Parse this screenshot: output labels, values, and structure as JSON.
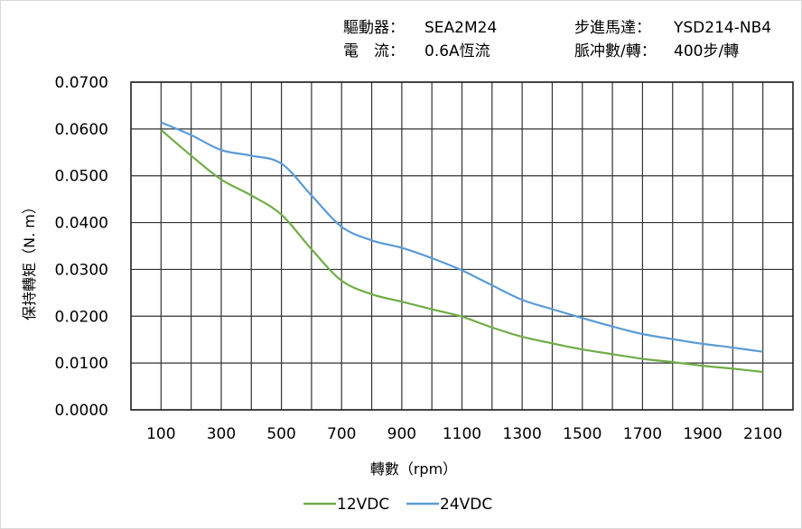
{
  "header": {
    "driver_label": "驅動器：",
    "driver_value": "SEA2M24",
    "motor_label": "步進馬達：",
    "motor_value": "YSD214-NB4",
    "current_label": "電　流：",
    "current_value": "0.6A恆流",
    "pulse_label": "脈冲數/轉：",
    "pulse_value": "400步/轉"
  },
  "chart_data": {
    "type": "line",
    "xlabel": "轉數（rpm）",
    "ylabel": "保持轉矩（N. m）",
    "xlim": [
      0,
      2200
    ],
    "ylim": [
      0,
      0.07
    ],
    "grid": true,
    "legend_placement": "bottom",
    "x": [
      100,
      200,
      300,
      400,
      500,
      600,
      700,
      800,
      900,
      1000,
      1100,
      1200,
      1300,
      1400,
      1500,
      1600,
      1700,
      1800,
      1900,
      2000,
      2100
    ],
    "x_ticks": [
      "100",
      "300",
      "500",
      "700",
      "900",
      "1100",
      "1300",
      "1500",
      "1700",
      "1900",
      "2100"
    ],
    "y_ticks": [
      "0.0000",
      "0.0100",
      "0.0200",
      "0.0300",
      "0.0400",
      "0.0500",
      "0.0600",
      "0.0700"
    ],
    "series": [
      {
        "name": "12VDC",
        "color": "#70ad47",
        "values": [
          0.0598,
          0.0543,
          0.0492,
          0.0458,
          0.0417,
          0.0343,
          0.0276,
          0.0247,
          0.0231,
          0.0215,
          0.0199,
          0.0176,
          0.0156,
          0.0142,
          0.0129,
          0.0119,
          0.0109,
          0.0102,
          0.0094,
          0.0088,
          0.0081
        ]
      },
      {
        "name": "24VDC",
        "color": "#5b9bd5",
        "values": [
          0.0614,
          0.0587,
          0.0555,
          0.0543,
          0.0526,
          0.0458,
          0.0391,
          0.0362,
          0.0346,
          0.0324,
          0.0298,
          0.0266,
          0.0235,
          0.0215,
          0.0196,
          0.0178,
          0.0162,
          0.0151,
          0.0141,
          0.0133,
          0.0124
        ]
      }
    ]
  }
}
